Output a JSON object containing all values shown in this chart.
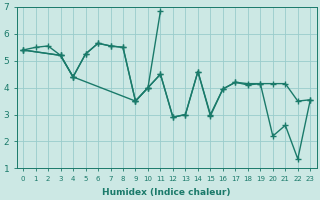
{
  "xlabel": "Humidex (Indice chaleur)",
  "xlim": [
    -0.5,
    23.5
  ],
  "ylim": [
    1,
    7
  ],
  "xticks": [
    0,
    1,
    2,
    3,
    4,
    5,
    6,
    7,
    8,
    9,
    10,
    11,
    12,
    13,
    14,
    15,
    16,
    17,
    18,
    19,
    20,
    21,
    22,
    23
  ],
  "yticks": [
    1,
    2,
    3,
    4,
    5,
    6,
    7
  ],
  "line1_x": [
    0,
    1,
    2,
    3,
    4,
    5,
    6,
    7,
    8,
    9,
    10,
    11
  ],
  "line1_y": [
    5.4,
    5.5,
    5.55,
    5.2,
    4.4,
    5.25,
    5.65,
    5.55,
    5.5,
    3.5,
    4.0,
    6.85
  ],
  "line2_x": [
    0,
    3,
    4,
    5,
    6,
    7,
    8,
    9,
    10,
    11,
    12,
    13,
    14,
    15,
    16,
    17,
    18,
    19,
    20,
    21,
    22,
    23
  ],
  "line2_y": [
    5.4,
    5.2,
    4.4,
    5.25,
    5.65,
    5.55,
    5.5,
    3.5,
    4.0,
    4.5,
    2.9,
    3.0,
    4.6,
    3.0,
    3.95,
    4.2,
    4.15,
    4.15,
    4.15,
    4.15,
    3.5,
    3.55
  ],
  "line3_x": [
    0,
    3,
    4,
    9,
    10,
    11,
    12,
    13,
    14,
    15,
    16,
    17,
    18,
    19,
    20,
    21,
    22,
    23
  ],
  "line3_y": [
    5.4,
    5.2,
    4.4,
    3.5,
    4.0,
    4.5,
    2.9,
    3.0,
    4.6,
    2.95,
    3.95,
    4.2,
    4.1,
    4.15,
    2.2,
    2.6,
    1.35,
    3.55
  ],
  "bg_color": "#cce8e4",
  "grid_color": "#99cccc",
  "line_color": "#1a7a6a",
  "marker": "+",
  "linewidth": 1.0,
  "markersize": 4
}
